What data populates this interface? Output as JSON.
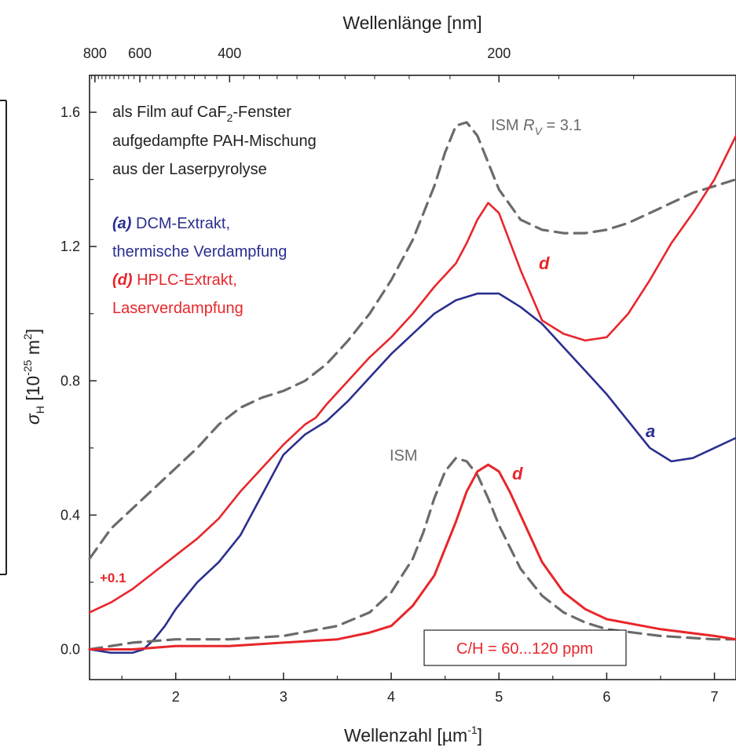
{
  "chart_data": {
    "type": "line",
    "xlabel": "Wellenzahl [µm⁻¹]",
    "x2label": "Wellenlänge [nm]",
    "ylabel": "σH [10⁻²⁵ m²]",
    "xlim": [
      1.2,
      7.2
    ],
    "ylim": [
      -0.09,
      1.71
    ],
    "x_ticks": [
      "2",
      "3",
      "4",
      "5",
      "6",
      "7"
    ],
    "y_ticks": [
      "0.0",
      "0.4",
      "0.8",
      "1.2",
      "1.6"
    ],
    "x2_ticks": [
      "800",
      "600",
      "400",
      "200"
    ],
    "x2_tick_wavelengths_nm": [
      800,
      600,
      400,
      200
    ],
    "offset_label": "+0.1",
    "ratio_box": "C/H = 60...120 ppm",
    "legend_text": {
      "header_line1_a": "als Film auf CaF",
      "header_line1_sub": "2",
      "header_line1_b": "-Fenster",
      "header_line2": "aufgedampfte PAH-Mischung",
      "header_line3": "aus der Laserpyrolyse",
      "a_tag": "(a)",
      "a_line1": " DCM-Extrakt,",
      "a_line2": "thermische Verdampfung",
      "d_tag": "(d)",
      "d_line1": " HPLC-Extrakt,",
      "d_line2": "Laserverdampfung"
    },
    "ism_label_top_a": "ISM ",
    "ism_label_top_r": "R",
    "ism_label_top_sub": "V",
    "ism_label_top_b": " = 3.1",
    "ism_label_bottom": "ISM",
    "curve_letters": {
      "a": "a",
      "d_upper": "d",
      "d_lower": "d"
    },
    "series": [
      {
        "id": "ism-rv31",
        "x": [
          1.2,
          1.4,
          1.6,
          1.8,
          2.0,
          2.2,
          2.4,
          2.6,
          2.8,
          3.0,
          3.2,
          3.4,
          3.6,
          3.8,
          4.0,
          4.2,
          4.4,
          4.5,
          4.6,
          4.7,
          4.8,
          4.9,
          5.0,
          5.2,
          5.4,
          5.6,
          5.8,
          6.0,
          6.2,
          6.4,
          6.6,
          6.8,
          7.0,
          7.2
        ],
        "y": [
          0.27,
          0.36,
          0.42,
          0.48,
          0.54,
          0.6,
          0.67,
          0.72,
          0.75,
          0.77,
          0.8,
          0.85,
          0.92,
          1.0,
          1.1,
          1.22,
          1.38,
          1.48,
          1.56,
          1.57,
          1.53,
          1.45,
          1.37,
          1.28,
          1.25,
          1.24,
          1.24,
          1.25,
          1.27,
          1.3,
          1.33,
          1.36,
          1.38,
          1.4
        ]
      },
      {
        "id": "curve-d",
        "x": [
          1.2,
          1.4,
          1.6,
          1.8,
          2.0,
          2.2,
          2.4,
          2.6,
          2.8,
          3.0,
          3.1,
          3.2,
          3.3,
          3.4,
          3.6,
          3.8,
          4.0,
          4.2,
          4.4,
          4.6,
          4.7,
          4.8,
          4.9,
          5.0,
          5.2,
          5.4,
          5.6,
          5.8,
          6.0,
          6.2,
          6.4,
          6.6,
          6.8,
          7.0,
          7.2
        ],
        "y": [
          0.11,
          0.14,
          0.18,
          0.23,
          0.28,
          0.33,
          0.39,
          0.47,
          0.54,
          0.61,
          0.64,
          0.67,
          0.69,
          0.73,
          0.8,
          0.87,
          0.93,
          1.0,
          1.08,
          1.15,
          1.21,
          1.28,
          1.33,
          1.3,
          1.13,
          0.98,
          0.94,
          0.92,
          0.93,
          1.0,
          1.1,
          1.21,
          1.3,
          1.4,
          1.53
        ]
      },
      {
        "id": "curve-a",
        "x": [
          1.2,
          1.4,
          1.6,
          1.7,
          1.8,
          1.9,
          2.0,
          2.2,
          2.4,
          2.6,
          2.8,
          3.0,
          3.2,
          3.4,
          3.6,
          3.8,
          4.0,
          4.2,
          4.4,
          4.6,
          4.8,
          5.0,
          5.2,
          5.4,
          5.6,
          5.8,
          6.0,
          6.2,
          6.4,
          6.6,
          6.8,
          7.0,
          7.2
        ],
        "y": [
          0.0,
          -0.01,
          -0.01,
          0.0,
          0.03,
          0.07,
          0.12,
          0.2,
          0.26,
          0.34,
          0.46,
          0.58,
          0.64,
          0.68,
          0.74,
          0.81,
          0.88,
          0.94,
          1.0,
          1.04,
          1.06,
          1.06,
          1.02,
          0.97,
          0.9,
          0.83,
          0.76,
          0.68,
          0.6,
          0.56,
          0.57,
          0.6,
          0.63
        ]
      },
      {
        "id": "ism-bottom",
        "x": [
          1.2,
          1.6,
          2.0,
          2.5,
          3.0,
          3.5,
          3.8,
          4.0,
          4.2,
          4.3,
          4.4,
          4.5,
          4.6,
          4.7,
          4.8,
          4.9,
          5.0,
          5.2,
          5.4,
          5.6,
          5.8,
          6.0,
          6.5,
          7.0,
          7.2
        ],
        "y": [
          0.0,
          0.02,
          0.03,
          0.03,
          0.04,
          0.07,
          0.11,
          0.17,
          0.27,
          0.35,
          0.45,
          0.53,
          0.57,
          0.56,
          0.52,
          0.45,
          0.37,
          0.24,
          0.16,
          0.11,
          0.08,
          0.06,
          0.04,
          0.03,
          0.03
        ]
      },
      {
        "id": "lorentz-d",
        "x": [
          1.2,
          1.6,
          2.0,
          2.5,
          3.0,
          3.5,
          3.8,
          4.0,
          4.2,
          4.4,
          4.6,
          4.7,
          4.8,
          4.9,
          5.0,
          5.1,
          5.2,
          5.4,
          5.6,
          5.8,
          6.0,
          6.5,
          7.0,
          7.2
        ],
        "y": [
          0.0,
          0.0,
          0.01,
          0.01,
          0.02,
          0.03,
          0.05,
          0.07,
          0.13,
          0.22,
          0.38,
          0.47,
          0.53,
          0.55,
          0.53,
          0.47,
          0.4,
          0.26,
          0.17,
          0.12,
          0.09,
          0.06,
          0.04,
          0.03
        ]
      }
    ],
    "colors": {
      "ism": "#6b6b6b",
      "a": "#2b2f8f",
      "d": "#e8262b",
      "axis": "#222222"
    }
  }
}
